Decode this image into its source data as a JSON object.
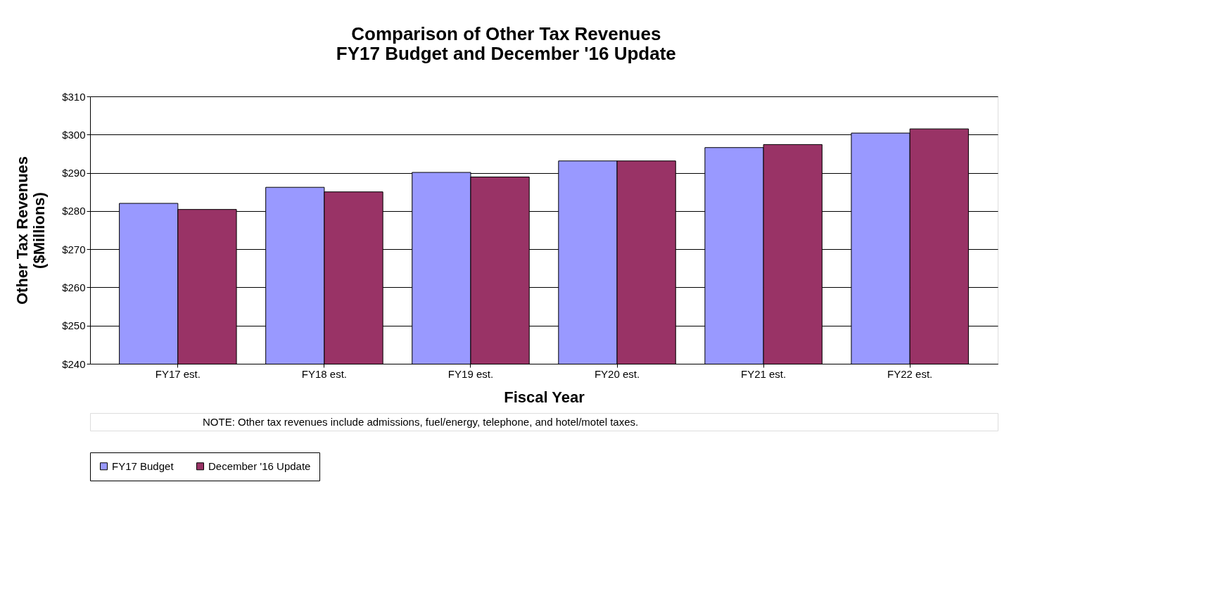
{
  "chart_data": {
    "type": "bar",
    "title": [
      "Comparison of Other Tax Revenues",
      "FY17 Budget and December '16 Update"
    ],
    "xlabel": "Fiscal Year",
    "ylabel": [
      "Other Tax Revenues",
      "($Millions)"
    ],
    "categories": [
      "FY17 est.",
      "FY18 est.",
      "FY19 est.",
      "FY20 est.",
      "FY21 est.",
      "FY22 est."
    ],
    "series": [
      {
        "name": "FY17 Budget",
        "color": "#9999ff",
        "values": [
          282.0,
          286.2,
          290.1,
          293.1,
          296.6,
          300.4
        ]
      },
      {
        "name": "December '16 Update",
        "color": "#993366",
        "values": [
          280.4,
          285.0,
          288.9,
          293.1,
          297.4,
          301.5
        ]
      }
    ],
    "ylim": [
      240,
      310
    ],
    "yticks": [
      {
        "value": 240,
        "label": "$240"
      },
      {
        "value": 250,
        "label": "$250"
      },
      {
        "value": 260,
        "label": "$260"
      },
      {
        "value": 270,
        "label": "$270"
      },
      {
        "value": 280,
        "label": "$280"
      },
      {
        "value": 290,
        "label": "$290"
      },
      {
        "value": 300,
        "label": "$300"
      },
      {
        "value": 310,
        "label": "$310"
      }
    ],
    "grid": "y",
    "legend": "bottom",
    "annotations": [
      "NOTE:   Other tax revenues include admissions, fuel/energy, telephone, and hotel/motel taxes."
    ]
  }
}
